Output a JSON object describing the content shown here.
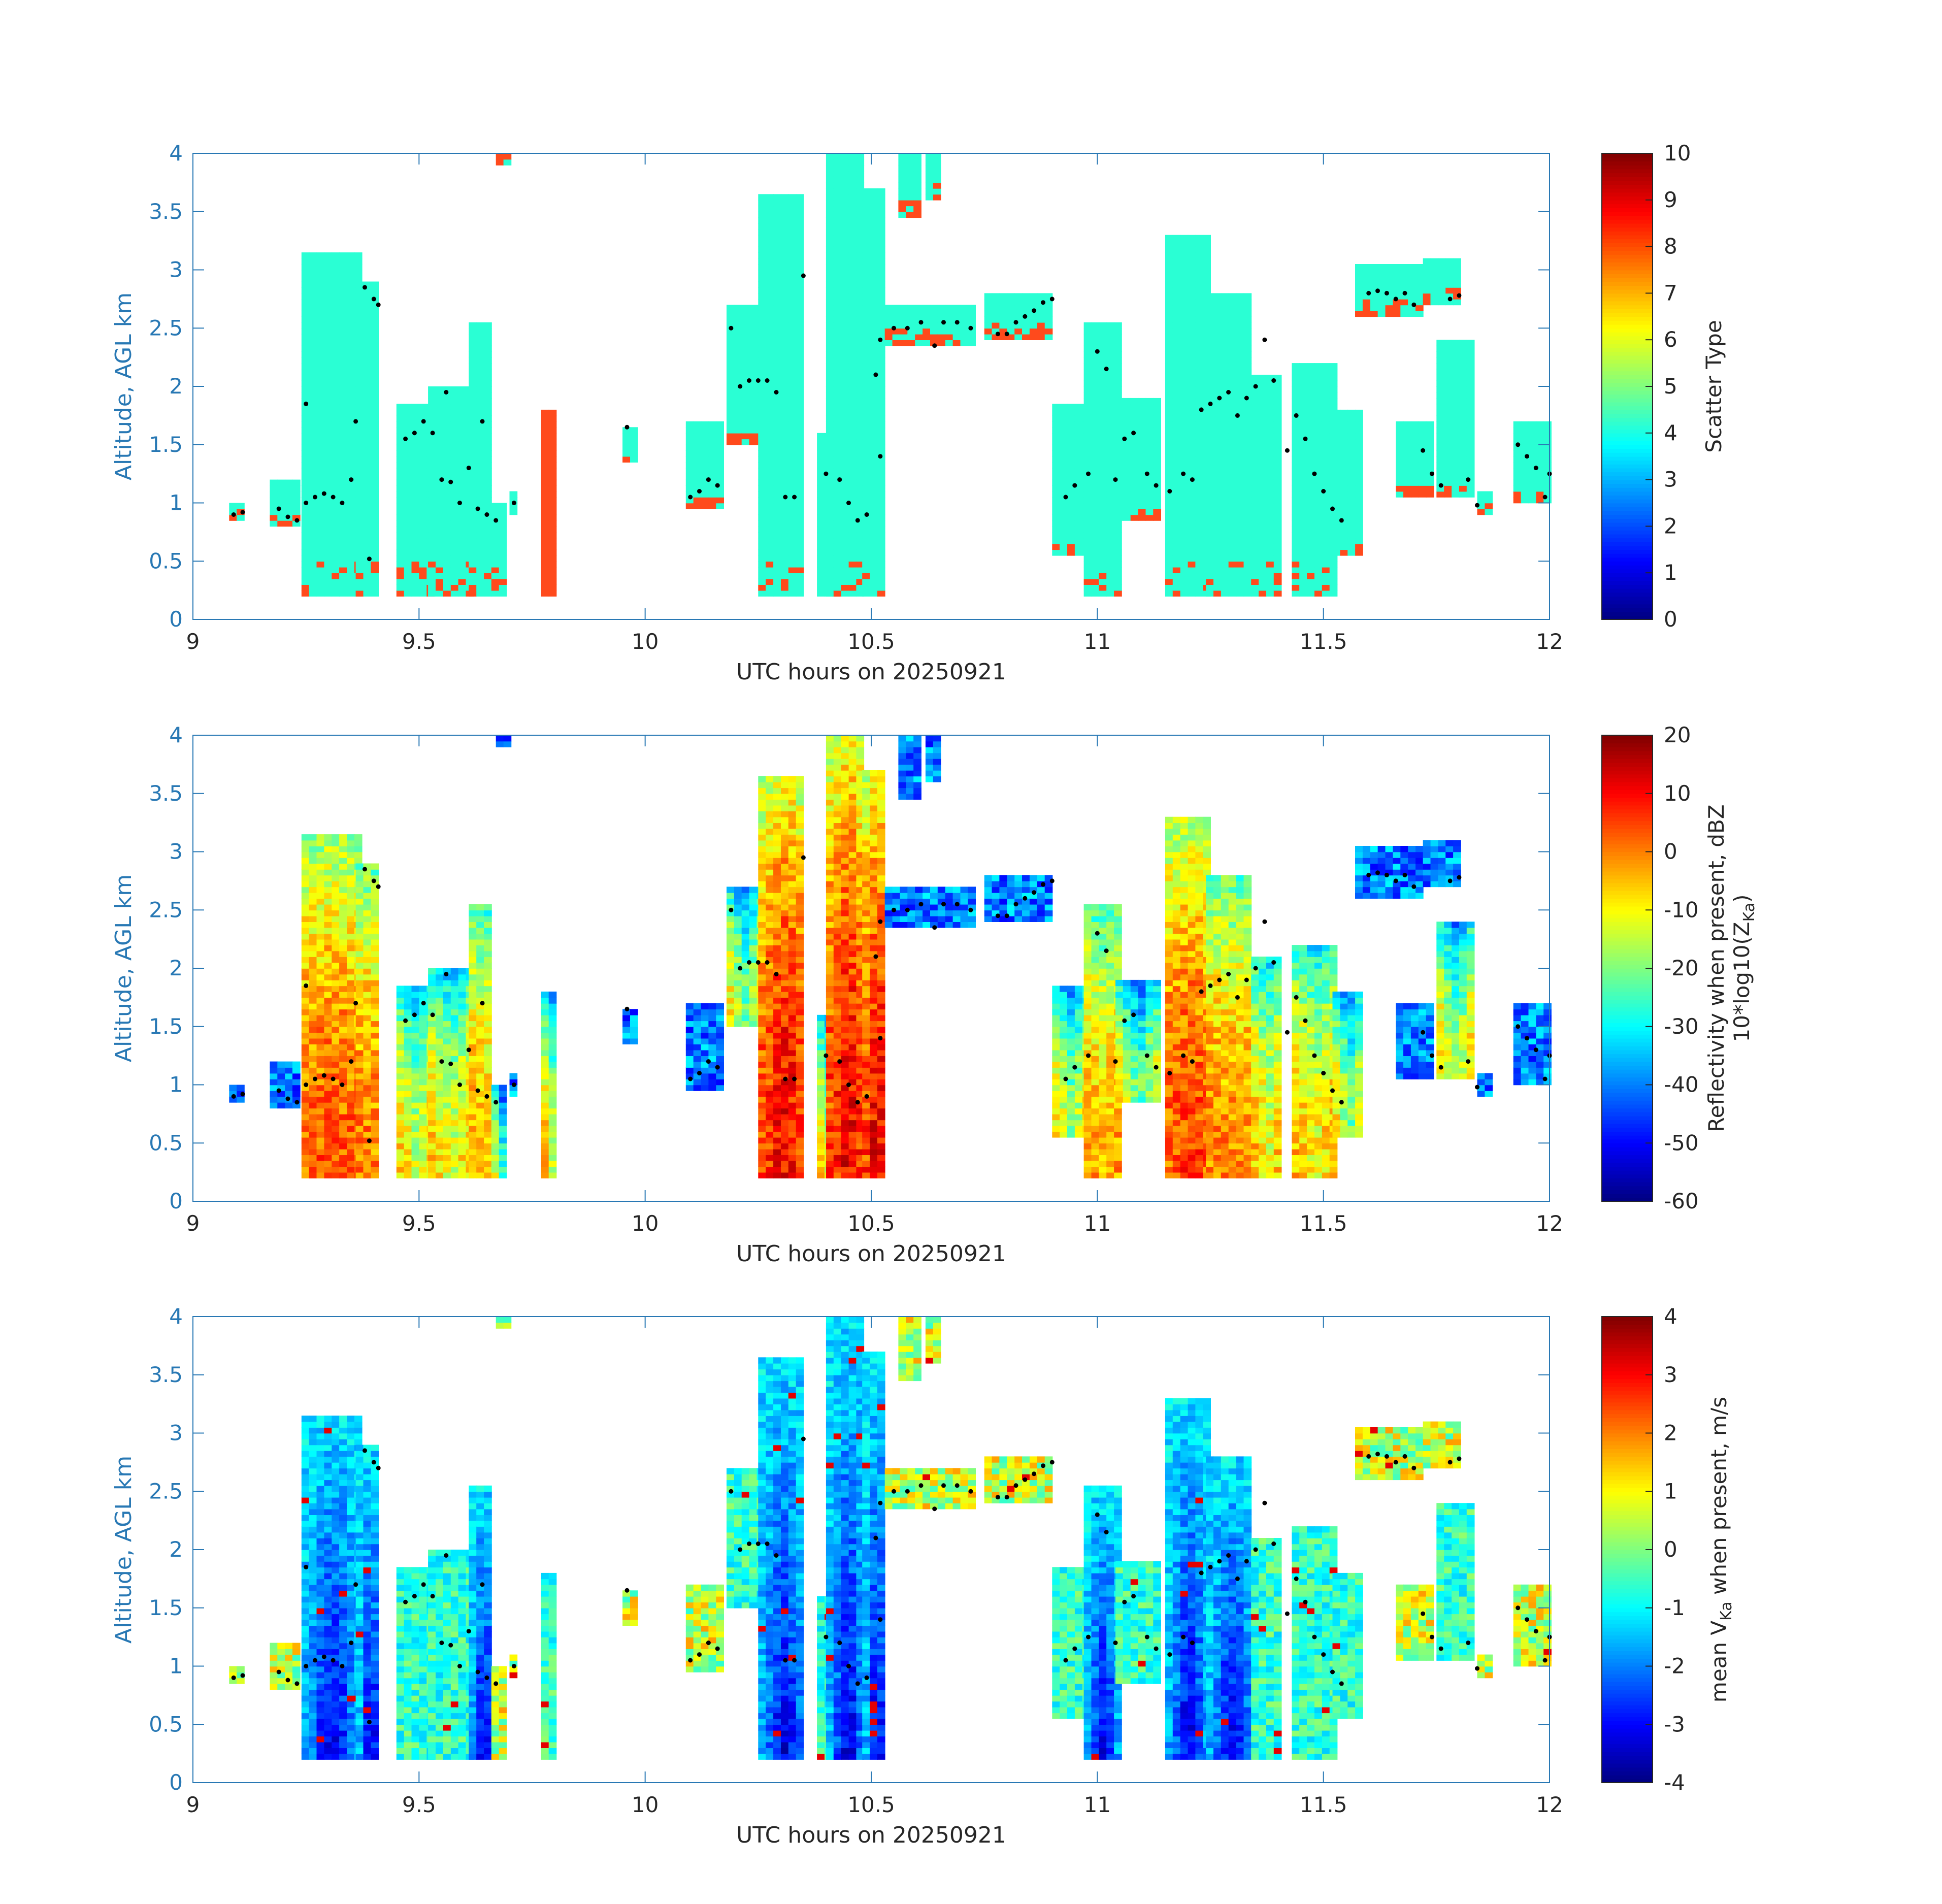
{
  "chart_data": [
    {
      "type": "heatmap",
      "panel": "scatter-type",
      "xlabel": "UTC hours on 20250921",
      "ylabel": "Altitude, AGL km",
      "xlim": [
        9,
        12
      ],
      "ylim": [
        0,
        4
      ],
      "xticks": [
        "9",
        "9.5",
        "10",
        "10.5",
        "11",
        "11.5",
        "12"
      ],
      "yticks": [
        "0",
        "0.5",
        "1",
        "1.5",
        "2",
        "2.5",
        "3",
        "3.5",
        "4"
      ],
      "colorbar": {
        "label": "Scatter Type",
        "range": [
          0,
          10
        ],
        "ticks": [
          "0",
          "1",
          "2",
          "3",
          "4",
          "5",
          "6",
          "7",
          "8",
          "9",
          "10"
        ],
        "colormap": "jet"
      },
      "mode": "type"
    },
    {
      "type": "heatmap",
      "panel": "reflectivity",
      "xlabel": "UTC hours on 20250921",
      "ylabel": "Altitude, AGL km",
      "xlim": [
        9,
        12
      ],
      "ylim": [
        0,
        4
      ],
      "xticks": [
        "9",
        "9.5",
        "10",
        "10.5",
        "11",
        "11.5",
        "12"
      ],
      "yticks": [
        "0",
        "0.5",
        "1",
        "1.5",
        "2",
        "2.5",
        "3",
        "3.5",
        "4"
      ],
      "colorbar": {
        "label_line1": "Reflectivity when present, dBZ",
        "label_line2": "10*log10(Z",
        "label_sub": "Ka",
        "label_end": ")",
        "range": [
          -60,
          20
        ],
        "ticks": [
          "-60",
          "-50",
          "-40",
          "-30",
          "-20",
          "-10",
          "0",
          "10",
          "20"
        ],
        "colormap": "jet"
      },
      "mode": "dbz"
    },
    {
      "type": "heatmap",
      "panel": "velocity",
      "xlabel": "UTC hours on 20250921",
      "ylabel": "Altitude, AGL km",
      "xlim": [
        9,
        12
      ],
      "ylim": [
        0,
        4
      ],
      "xticks": [
        "9",
        "9.5",
        "10",
        "10.5",
        "11",
        "11.5",
        "12"
      ],
      "yticks": [
        "0",
        "0.5",
        "1",
        "1.5",
        "2",
        "2.5",
        "3",
        "3.5",
        "4"
      ],
      "colorbar": {
        "label_pre": "mean V",
        "label_sub": "Ka",
        "label_post": " when present, m/s",
        "range": [
          -4,
          4
        ],
        "ticks": [
          "-4",
          "-3",
          "-2",
          "-1",
          "0",
          "1",
          "2",
          "3",
          "4"
        ],
        "colormap": "jet"
      },
      "mode": "vel"
    }
  ],
  "echo_columns": [
    {
      "t0": 9.08,
      "t1": 9.1,
      "zb": 0.85,
      "zt": 1.0
    },
    {
      "t0": 9.17,
      "t1": 9.23,
      "zb": 0.8,
      "zt": 1.2
    },
    {
      "t0": 9.24,
      "t1": 9.36,
      "zb": 0.2,
      "zt": 3.15
    },
    {
      "t0": 9.36,
      "t1": 9.41,
      "zb": 0.2,
      "zt": 2.9
    },
    {
      "t0": 9.45,
      "t1": 9.52,
      "zb": 0.2,
      "zt": 1.85
    },
    {
      "t0": 9.52,
      "t1": 9.61,
      "zb": 0.2,
      "zt": 2.0
    },
    {
      "t0": 9.61,
      "t1": 9.66,
      "zb": 0.2,
      "zt": 2.55
    },
    {
      "t0": 9.66,
      "t1": 9.69,
      "zb": 0.2,
      "zt": 1.0
    },
    {
      "t0": 9.7,
      "t1": 9.71,
      "zb": 0.9,
      "zt": 1.1
    },
    {
      "t0": 9.67,
      "t1": 9.7,
      "zb": 3.9,
      "zt": 4.0
    },
    {
      "t0": 9.77,
      "t1": 9.8,
      "zb": 0.2,
      "zt": 1.8
    },
    {
      "t0": 9.95,
      "t1": 9.97,
      "zb": 1.35,
      "zt": 1.65
    },
    {
      "t0": 10.09,
      "t1": 10.16,
      "zb": 0.95,
      "zt": 1.7
    },
    {
      "t0": 10.18,
      "t1": 10.25,
      "zb": 1.5,
      "zt": 2.7
    },
    {
      "t0": 10.25,
      "t1": 10.35,
      "zb": 0.2,
      "zt": 3.65
    },
    {
      "t0": 10.38,
      "t1": 10.43,
      "zb": 0.2,
      "zt": 1.6
    },
    {
      "t0": 10.4,
      "t1": 10.48,
      "zb": 0.2,
      "zt": 4.0
    },
    {
      "t0": 10.48,
      "t1": 10.53,
      "zb": 0.2,
      "zt": 3.7
    },
    {
      "t0": 10.53,
      "t1": 10.72,
      "zb": 2.35,
      "zt": 2.7
    },
    {
      "t0": 10.56,
      "t1": 10.6,
      "zb": 3.45,
      "zt": 4.0
    },
    {
      "t0": 10.62,
      "t1": 10.64,
      "zb": 3.6,
      "zt": 4.0
    },
    {
      "t0": 10.75,
      "t1": 10.9,
      "zb": 2.4,
      "zt": 2.8
    },
    {
      "t0": 10.9,
      "t1": 10.97,
      "zb": 0.55,
      "zt": 1.85
    },
    {
      "t0": 10.97,
      "t1": 11.04,
      "zb": 0.2,
      "zt": 2.55
    },
    {
      "t0": 11.04,
      "t1": 11.13,
      "zb": 0.85,
      "zt": 1.9
    },
    {
      "t0": 11.15,
      "t1": 11.24,
      "zb": 0.2,
      "zt": 3.3
    },
    {
      "t0": 11.24,
      "t1": 11.34,
      "zb": 0.2,
      "zt": 2.8
    },
    {
      "t0": 11.34,
      "t1": 11.4,
      "zb": 0.2,
      "zt": 2.1
    },
    {
      "t0": 11.43,
      "t1": 11.52,
      "zb": 0.2,
      "zt": 2.2
    },
    {
      "t0": 11.52,
      "t1": 11.58,
      "zb": 0.55,
      "zt": 1.8
    },
    {
      "t0": 11.57,
      "t1": 11.72,
      "zb": 2.6,
      "zt": 3.05
    },
    {
      "t0": 11.72,
      "t1": 11.8,
      "zb": 2.7,
      "zt": 3.1
    },
    {
      "t0": 11.66,
      "t1": 11.73,
      "zb": 1.05,
      "zt": 1.7
    },
    {
      "t0": 11.75,
      "t1": 11.82,
      "zb": 1.05,
      "zt": 2.4
    },
    {
      "t0": 11.84,
      "t1": 11.86,
      "zb": 0.9,
      "zt": 1.1
    },
    {
      "t0": 11.92,
      "t1": 12.0,
      "zb": 1.0,
      "zt": 1.7
    }
  ],
  "cloud_base_points": [
    [
      9.09,
      0.9
    ],
    [
      9.11,
      0.92
    ],
    [
      9.19,
      0.95
    ],
    [
      9.21,
      0.88
    ],
    [
      9.23,
      0.85
    ],
    [
      9.25,
      1.0
    ],
    [
      9.27,
      1.05
    ],
    [
      9.29,
      1.08
    ],
    [
      9.31,
      1.05
    ],
    [
      9.33,
      1.0
    ],
    [
      9.35,
      1.2
    ],
    [
      9.36,
      1.7
    ],
    [
      9.38,
      2.85
    ],
    [
      9.4,
      2.75
    ],
    [
      9.41,
      2.7
    ],
    [
      9.39,
      0.52
    ],
    [
      9.25,
      1.85
    ],
    [
      9.47,
      1.55
    ],
    [
      9.49,
      1.6
    ],
    [
      9.51,
      1.7
    ],
    [
      9.53,
      1.6
    ],
    [
      9.55,
      1.2
    ],
    [
      9.57,
      1.18
    ],
    [
      9.59,
      1.0
    ],
    [
      9.61,
      1.3
    ],
    [
      9.63,
      0.95
    ],
    [
      9.65,
      0.9
    ],
    [
      9.67,
      0.85
    ],
    [
      9.71,
      1.0
    ],
    [
      9.56,
      1.95
    ],
    [
      9.64,
      1.7
    ],
    [
      9.96,
      1.65
    ],
    [
      10.1,
      1.05
    ],
    [
      10.12,
      1.1
    ],
    [
      10.14,
      1.2
    ],
    [
      10.16,
      1.15
    ],
    [
      10.19,
      2.5
    ],
    [
      10.21,
      2.0
    ],
    [
      10.23,
      2.05
    ],
    [
      10.25,
      2.05
    ],
    [
      10.27,
      2.05
    ],
    [
      10.29,
      1.95
    ],
    [
      10.31,
      1.05
    ],
    [
      10.33,
      1.05
    ],
    [
      10.35,
      2.95
    ],
    [
      10.4,
      1.25
    ],
    [
      10.43,
      1.2
    ],
    [
      10.45,
      1.0
    ],
    [
      10.47,
      0.85
    ],
    [
      10.49,
      0.9
    ],
    [
      10.51,
      2.1
    ],
    [
      10.52,
      2.4
    ],
    [
      10.52,
      1.4
    ],
    [
      10.55,
      2.5
    ],
    [
      10.58,
      2.5
    ],
    [
      10.61,
      2.55
    ],
    [
      10.64,
      2.35
    ],
    [
      10.66,
      2.55
    ],
    [
      10.69,
      2.55
    ],
    [
      10.72,
      2.5
    ],
    [
      10.78,
      2.45
    ],
    [
      10.8,
      2.45
    ],
    [
      10.82,
      2.55
    ],
    [
      10.84,
      2.6
    ],
    [
      10.86,
      2.65
    ],
    [
      10.88,
      2.72
    ],
    [
      10.9,
      2.75
    ],
    [
      10.93,
      1.05
    ],
    [
      10.95,
      1.15
    ],
    [
      10.98,
      1.25
    ],
    [
      11.0,
      2.3
    ],
    [
      11.02,
      2.15
    ],
    [
      11.04,
      1.2
    ],
    [
      11.06,
      1.55
    ],
    [
      11.08,
      1.6
    ],
    [
      11.11,
      1.25
    ],
    [
      11.13,
      1.15
    ],
    [
      11.16,
      1.1
    ],
    [
      11.19,
      1.25
    ],
    [
      11.21,
      1.2
    ],
    [
      11.23,
      1.8
    ],
    [
      11.25,
      1.85
    ],
    [
      11.27,
      1.9
    ],
    [
      11.29,
      1.95
    ],
    [
      11.31,
      1.75
    ],
    [
      11.33,
      1.9
    ],
    [
      11.35,
      2.0
    ],
    [
      11.37,
      2.4
    ],
    [
      11.39,
      2.05
    ],
    [
      11.42,
      1.45
    ],
    [
      11.44,
      1.75
    ],
    [
      11.46,
      1.55
    ],
    [
      11.48,
      1.25
    ],
    [
      11.5,
      1.1
    ],
    [
      11.52,
      0.95
    ],
    [
      11.54,
      0.85
    ],
    [
      11.6,
      2.8
    ],
    [
      11.62,
      2.82
    ],
    [
      11.64,
      2.8
    ],
    [
      11.66,
      2.75
    ],
    [
      11.68,
      2.8
    ],
    [
      11.7,
      2.7
    ],
    [
      11.72,
      1.45
    ],
    [
      11.74,
      1.25
    ],
    [
      11.76,
      1.15
    ],
    [
      11.78,
      2.75
    ],
    [
      11.8,
      2.78
    ],
    [
      11.82,
      1.2
    ],
    [
      11.84,
      0.98
    ],
    [
      11.93,
      1.5
    ],
    [
      11.95,
      1.4
    ],
    [
      11.97,
      1.3
    ],
    [
      11.99,
      1.05
    ],
    [
      12.0,
      1.25
    ]
  ]
}
